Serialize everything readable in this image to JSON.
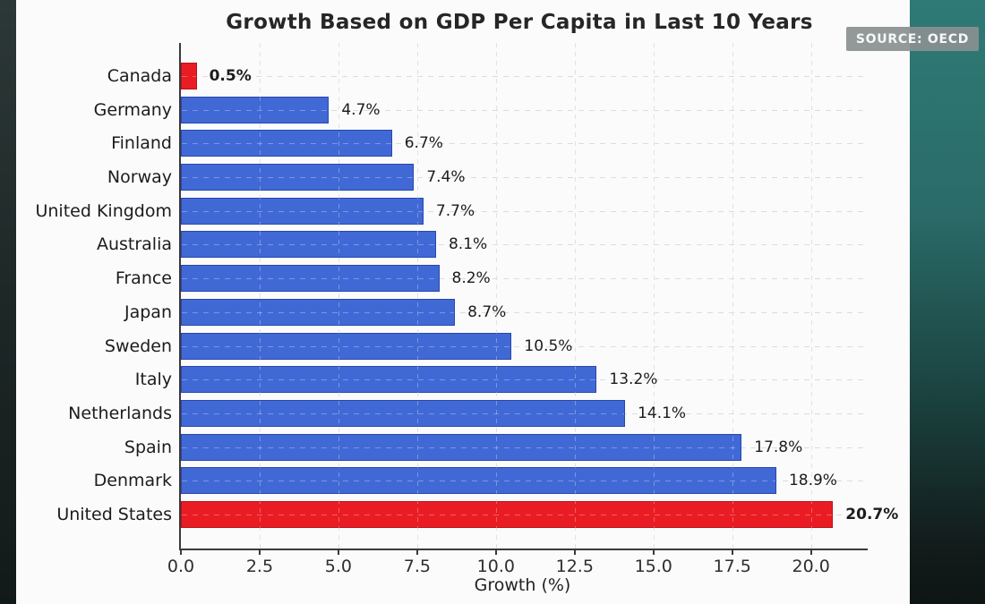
{
  "title": "Growth Based on GDP Per Capita in Last 10 Years",
  "source_badge": "SOURCE: OECD",
  "xlabel": "Growth (%)",
  "colors": {
    "bar_blue": "#4169d6",
    "bar_blue_edge": "#2747ad",
    "bar_red": "#ea1c23",
    "bar_red_edge": "#b9121a",
    "teal_band_top": "#2f7a76",
    "teal_band_bottom": "#0e1514",
    "left_band": "#1c2625",
    "badge_bg": "#8a9090"
  },
  "chart_data": {
    "type": "bar",
    "orientation": "horizontal",
    "title": "Growth Based on GDP Per Capita in Last 10 Years",
    "xlabel": "Growth (%)",
    "ylabel": "",
    "categories": [
      "Canada",
      "Germany",
      "Finland",
      "Norway",
      "United Kingdom",
      "Australia",
      "France",
      "Japan",
      "Sweden",
      "Italy",
      "Netherlands",
      "Spain",
      "Denmark",
      "United States"
    ],
    "values": [
      0.5,
      4.7,
      6.7,
      7.4,
      7.7,
      8.1,
      8.2,
      8.7,
      10.5,
      13.2,
      14.1,
      17.8,
      18.9,
      20.7
    ],
    "value_labels": [
      "0.5%",
      "4.7%",
      "6.7%",
      "7.4%",
      "7.7%",
      "8.1%",
      "8.2%",
      "8.7%",
      "10.5%",
      "13.2%",
      "14.1%",
      "17.8%",
      "18.9%",
      "20.7%"
    ],
    "highlight_indices": [
      0,
      13
    ],
    "highlight_label_bold": true,
    "xlim": [
      0,
      21.8
    ],
    "xticks": [
      0.0,
      2.5,
      5.0,
      7.5,
      10.0,
      12.5,
      15.0,
      17.5,
      20.0
    ],
    "xtick_labels": [
      "0.0",
      "2.5",
      "5.0",
      "7.5",
      "10.0",
      "12.5",
      "15.0",
      "17.5",
      "20.0"
    ],
    "grid": "dashed-both",
    "legend": "none",
    "source": "SOURCE: OECD"
  }
}
